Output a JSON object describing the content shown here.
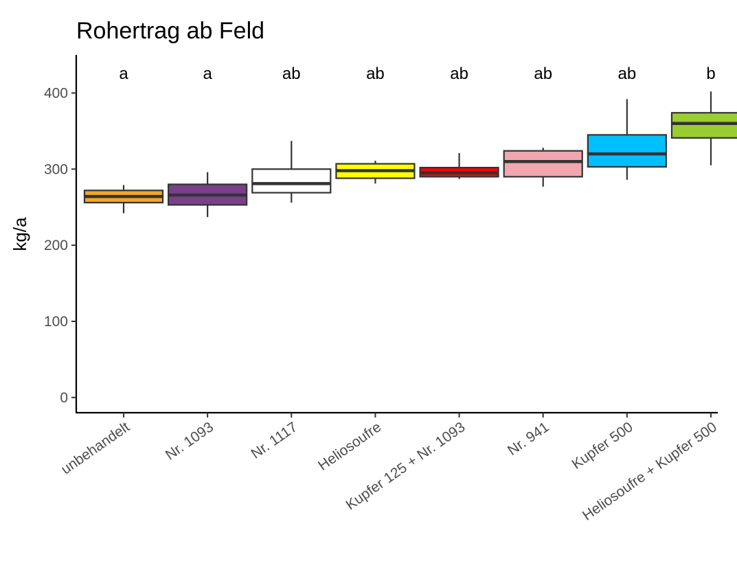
{
  "chart_data": {
    "type": "box",
    "title": "Rohertrag ab Feld",
    "xlabel": "",
    "ylabel": "kg/a",
    "ylim": [
      -20,
      450
    ],
    "yticks": [
      0,
      100,
      200,
      300,
      400
    ],
    "grid": false,
    "categories": [
      "unbehandelt",
      "Nr. 1093",
      "Nr. 1117",
      "Heliosoufre",
      "Kupfer 125 + Nr. 1093",
      "Nr. 941",
      "Kupfer 500",
      "Heliosoufre + Kupfer 500"
    ],
    "boxes": [
      {
        "min": 242,
        "q1": 256,
        "median": 264,
        "q3": 272,
        "max": 279,
        "fill": "#f5a623"
      },
      {
        "min": 237,
        "q1": 253,
        "median": 266,
        "q3": 280,
        "max": 296,
        "fill": "#7b3f8c"
      },
      {
        "min": 256,
        "q1": 269,
        "median": 281,
        "q3": 300,
        "max": 337,
        "fill": "#ffffff"
      },
      {
        "min": 281,
        "q1": 288,
        "median": 298,
        "q3": 307,
        "max": 311,
        "fill": "#ffff00"
      },
      {
        "min": 287,
        "q1": 290,
        "median": 295,
        "q3": 302,
        "max": 321,
        "fill": "#ff0000"
      },
      {
        "min": 277,
        "q1": 290,
        "median": 310,
        "q3": 324,
        "max": 328,
        "fill": "#f2a6b0"
      },
      {
        "min": 286,
        "q1": 303,
        "median": 320,
        "q3": 345,
        "max": 392,
        "fill": "#00bfff"
      },
      {
        "min": 305,
        "q1": 341,
        "median": 360,
        "q3": 374,
        "max": 402,
        "fill": "#9acd32"
      }
    ],
    "group_labels": [
      "a",
      "a",
      "ab",
      "ab",
      "ab",
      "ab",
      "ab",
      "b"
    ]
  }
}
